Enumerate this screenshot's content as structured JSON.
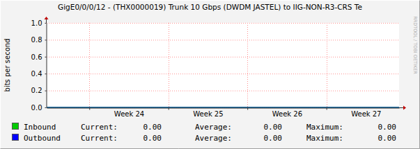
{
  "chart_data": {
    "type": "line",
    "title": "GigE0/0/0/12 - (THX0000019) Trunk 10 Gbps (DWDM JASTEL) to IIG-NON-R3-CRS Te",
    "y_label": "bits per second",
    "annotations": [
      "RRDTOOL / TOBI OETIKER"
    ],
    "x": [
      23.46,
      27.92
    ],
    "xlim": [
      23.46,
      27.92
    ],
    "xticks": [
      {
        "value": 24,
        "label": "Week 24"
      },
      {
        "value": 25,
        "label": "Week 25"
      },
      {
        "value": 26,
        "label": "Week 26"
      },
      {
        "value": 27,
        "label": "Week 27"
      }
    ],
    "ylim": [
      0,
      1
    ],
    "yticks": [
      {
        "value": 0,
        "label": "0.0"
      },
      0.2,
      0.4,
      0.6,
      0.8,
      {
        "value": 1,
        "label": "1.0"
      }
    ],
    "grid": true,
    "stat_labels": [
      "Current:",
      "Average:",
      "Maximum:"
    ],
    "series": [
      {
        "name": "Inbound",
        "color": "#00cc00",
        "type": "area",
        "values": [
          0,
          0
        ],
        "stats": [
          {
            "value": 0,
            "label": "0.00"
          },
          {
            "value": 0,
            "label": "0.00"
          },
          {
            "value": 0,
            "label": "0.00"
          }
        ]
      },
      {
        "name": "Outbound",
        "color": "#0000ff",
        "type": "line",
        "values": [
          0,
          0
        ],
        "stats": [
          {
            "value": 0,
            "label": "0.00"
          },
          {
            "value": 0,
            "label": "0.00"
          },
          {
            "value": 0,
            "label": "0.00"
          }
        ]
      }
    ]
  }
}
